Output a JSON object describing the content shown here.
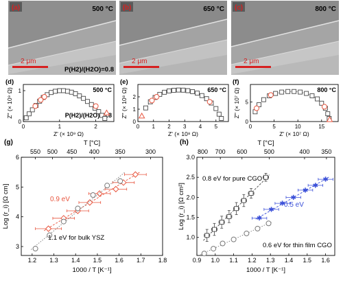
{
  "micrographs": [
    {
      "panel": "(a)",
      "temperature": "500 °C",
      "scale_bar": "2 μm",
      "condition": "P(H2)/(H2O)=0.8"
    },
    {
      "panel": "(b)",
      "temperature": "650 °C",
      "scale_bar": "2 μm"
    },
    {
      "panel": "(c)",
      "temperature": "800 °C",
      "scale_bar": "2 μm"
    }
  ],
  "colors": {
    "red": "#e8553e",
    "blue": "#3a4fd8",
    "dark": "#444444",
    "gray": "#777777",
    "scale_bar": "#d62020"
  },
  "chart_data": [
    {
      "panel": "(d)",
      "type": "scatter",
      "temperature": "500 °C",
      "ylabel": "Z'' (× 10⁹ Ω)",
      "xlabel": "Z' (× 10⁹ Ω)",
      "annotation": "P(H2)/(H2O)=0.8",
      "xlim": [
        0,
        2.5
      ],
      "ylim": [
        0,
        1.2
      ],
      "x_ticks": [
        "0",
        "1",
        "2"
      ],
      "y_ticks": [
        "0",
        "1"
      ],
      "series": [
        {
          "marker": "square-open",
          "color": "#444444",
          "x": [
            0.08,
            0.16,
            0.25,
            0.35,
            0.45,
            0.55,
            0.66,
            0.77,
            0.88,
            1.0,
            1.11,
            1.22,
            1.33,
            1.44,
            1.55,
            1.66,
            1.77,
            1.88,
            1.98,
            2.08,
            2.17,
            2.25
          ],
          "y": [
            0.12,
            0.25,
            0.38,
            0.52,
            0.66,
            0.78,
            0.87,
            0.94,
            0.98,
            1.0,
            1.0,
            0.98,
            0.95,
            0.9,
            0.83,
            0.75,
            0.65,
            0.55,
            0.43,
            0.32,
            0.2,
            0.1
          ]
        },
        {
          "marker": "circle-open",
          "color": "#e8553e",
          "x": [
            0.33,
            0.48,
            0.58,
            2.0
          ],
          "y": [
            0.5,
            0.7,
            0.8,
            0.5
          ]
        },
        {
          "marker": "triangle-open",
          "color": "#e8553e",
          "x": [
            2.3
          ],
          "y": [
            0.28
          ]
        }
      ]
    },
    {
      "panel": "(e)",
      "type": "scatter",
      "temperature": "650 °C",
      "ylabel": "Z'' (× 10⁸ Ω)",
      "xlabel": "Z' (× 10⁸ Ω)",
      "xlim": [
        0,
        5.8
      ],
      "ylim": [
        0,
        3.0
      ],
      "x_ticks": [
        "0",
        "1",
        "2",
        "3",
        "4",
        "5"
      ],
      "y_ticks": [
        "0",
        "1",
        "2"
      ],
      "series": [
        {
          "marker": "square-open",
          "color": "#444444",
          "x": [
            0.5,
            0.8,
            1.1,
            1.4,
            1.7,
            2.0,
            2.3,
            2.6,
            2.9,
            3.2,
            3.5,
            3.8,
            4.1,
            4.4,
            4.7,
            5.0,
            5.2,
            5.35
          ],
          "y": [
            1.1,
            1.6,
            1.95,
            2.2,
            2.37,
            2.48,
            2.53,
            2.55,
            2.54,
            2.5,
            2.42,
            2.3,
            2.1,
            1.85,
            1.5,
            1.05,
            0.6,
            0.25
          ]
        },
        {
          "marker": "circle-open",
          "color": "#e8553e",
          "x": [
            0.9,
            1.2,
            4.6
          ],
          "y": [
            1.7,
            2.0,
            1.6
          ]
        },
        {
          "marker": "triangle-open",
          "color": "#e8553e",
          "x": [
            0.25
          ],
          "y": [
            0.45
          ]
        }
      ]
    },
    {
      "panel": "(f)",
      "type": "scatter",
      "temperature": "800 °C",
      "ylabel": "Z'' (× 10⁷ Ω)",
      "xlabel": "Z' (× 10⁷ Ω)",
      "xlim": [
        0,
        18.5
      ],
      "ylim": [
        0,
        9.5
      ],
      "x_ticks": [
        "0",
        "5",
        "10",
        "15"
      ],
      "y_ticks": [
        "0",
        "5"
      ],
      "series": [
        {
          "marker": "square-open",
          "color": "#444444",
          "x": [
            1.0,
            1.8,
            2.8,
            4.0,
            5.3,
            6.6,
            7.9,
            9.2,
            10.5,
            11.8,
            13.0,
            14.1,
            15.0,
            15.8,
            16.3,
            16.6
          ],
          "y": [
            2.5,
            4.3,
            5.6,
            6.6,
            7.2,
            7.55,
            7.7,
            7.7,
            7.55,
            7.2,
            6.6,
            5.8,
            4.7,
            3.4,
            2.0,
            0.8
          ]
        },
        {
          "marker": "circle-open",
          "color": "#e8553e",
          "x": [
            1.3,
            4.3,
            15.6
          ],
          "y": [
            3.4,
            6.8,
            3.8
          ]
        },
        {
          "marker": "triangle-open",
          "color": "#e8553e",
          "x": [
            16.7
          ],
          "y": [
            0.5
          ]
        }
      ]
    },
    {
      "panel": "(g)",
      "type": "scatter",
      "xlabel": "1000 / T [K⁻¹]",
      "ylabel": "Log (r_i) [Ω cm]",
      "top_xlabel": "T [°C]",
      "xlim": [
        1.15,
        1.8
      ],
      "ylim": [
        2.7,
        6.0
      ],
      "x_ticks": [
        "1.2",
        "1.3",
        "1.4",
        "1.5",
        "1.6",
        "1.7",
        "1.8"
      ],
      "y_ticks": [
        "3",
        "4",
        "5",
        "6"
      ],
      "top_ticks": [
        "550",
        "500",
        "450",
        "400",
        "350",
        "300"
      ],
      "series": [
        {
          "label": "0.9 eV",
          "marker": "diamond-open",
          "color": "#e8553e",
          "fit": "dashed",
          "x": [
            1.275,
            1.345,
            1.41,
            1.465,
            1.51,
            1.585,
            1.62,
            1.675
          ],
          "y": [
            3.6,
            3.95,
            4.2,
            4.48,
            4.78,
            4.93,
            5.15,
            5.42
          ],
          "x_err": [
            0.06,
            0.05,
            0.05,
            0.05,
            0.05,
            0.05,
            0.05,
            0.05
          ]
        },
        {
          "label": "1.1 eV for bulk YSZ",
          "marker": "circle-open",
          "color": "#777777",
          "fit": "dotted",
          "x": [
            1.215,
            1.28,
            1.345,
            1.41,
            1.48,
            1.545,
            1.605
          ],
          "y": [
            2.93,
            3.38,
            3.84,
            4.28,
            4.73,
            5.05,
            5.2
          ]
        }
      ]
    },
    {
      "panel": "(h)",
      "type": "scatter",
      "xlabel": "1000 / T [K⁻¹]",
      "ylabel": "Log (r_i) [Ω cm²]",
      "top_xlabel": "T [°C]",
      "xlim": [
        0.9,
        1.65
      ],
      "ylim": [
        0.55,
        3.0
      ],
      "x_ticks": [
        "0.9",
        "1.0",
        "1.1",
        "1.2",
        "1.3",
        "1.4",
        "1.5",
        "1.6"
      ],
      "y_ticks": [
        "1.0",
        "1.5",
        "2.0",
        "2.5",
        "3.0"
      ],
      "top_ticks": [
        "800",
        "700",
        "600",
        "500",
        "400",
        "350"
      ],
      "series": [
        {
          "label": "0.8 eV for pure CGO",
          "marker": "square-open",
          "color": "#444444",
          "fit": "dashed",
          "x": [
            0.955,
            0.995,
            1.035,
            1.075,
            1.115,
            1.155,
            1.195,
            1.275
          ],
          "y": [
            1.05,
            1.2,
            1.38,
            1.52,
            1.72,
            1.92,
            2.1,
            2.5
          ],
          "y_err": [
            0.15,
            0.15,
            0.15,
            0.15,
            0.15,
            0.15,
            0.12,
            0.1
          ],
          "x_err": [
            0.015,
            0.015,
            0.015,
            0.015,
            0.015,
            0.015,
            0.015,
            0.015
          ]
        },
        {
          "label": "0.5 eV",
          "marker": "star",
          "color": "#3a4fd8",
          "fit": "dashed",
          "x": [
            1.24,
            1.305,
            1.365,
            1.425,
            1.49,
            1.545,
            1.6
          ],
          "y": [
            1.48,
            1.7,
            1.85,
            2.0,
            2.18,
            2.3,
            2.45
          ],
          "x_err": [
            0.04,
            0.04,
            0.04,
            0.04,
            0.04,
            0.04,
            0.04
          ]
        },
        {
          "label": "0.6 eV for thin film CGO",
          "marker": "circle-open",
          "color": "#777777",
          "fit": "dotted",
          "x": [
            0.94,
            0.99,
            1.04,
            1.1,
            1.17,
            1.23,
            1.29
          ],
          "y": [
            0.6,
            0.72,
            0.85,
            0.95,
            1.1,
            1.22,
            1.35
          ]
        }
      ]
    }
  ]
}
